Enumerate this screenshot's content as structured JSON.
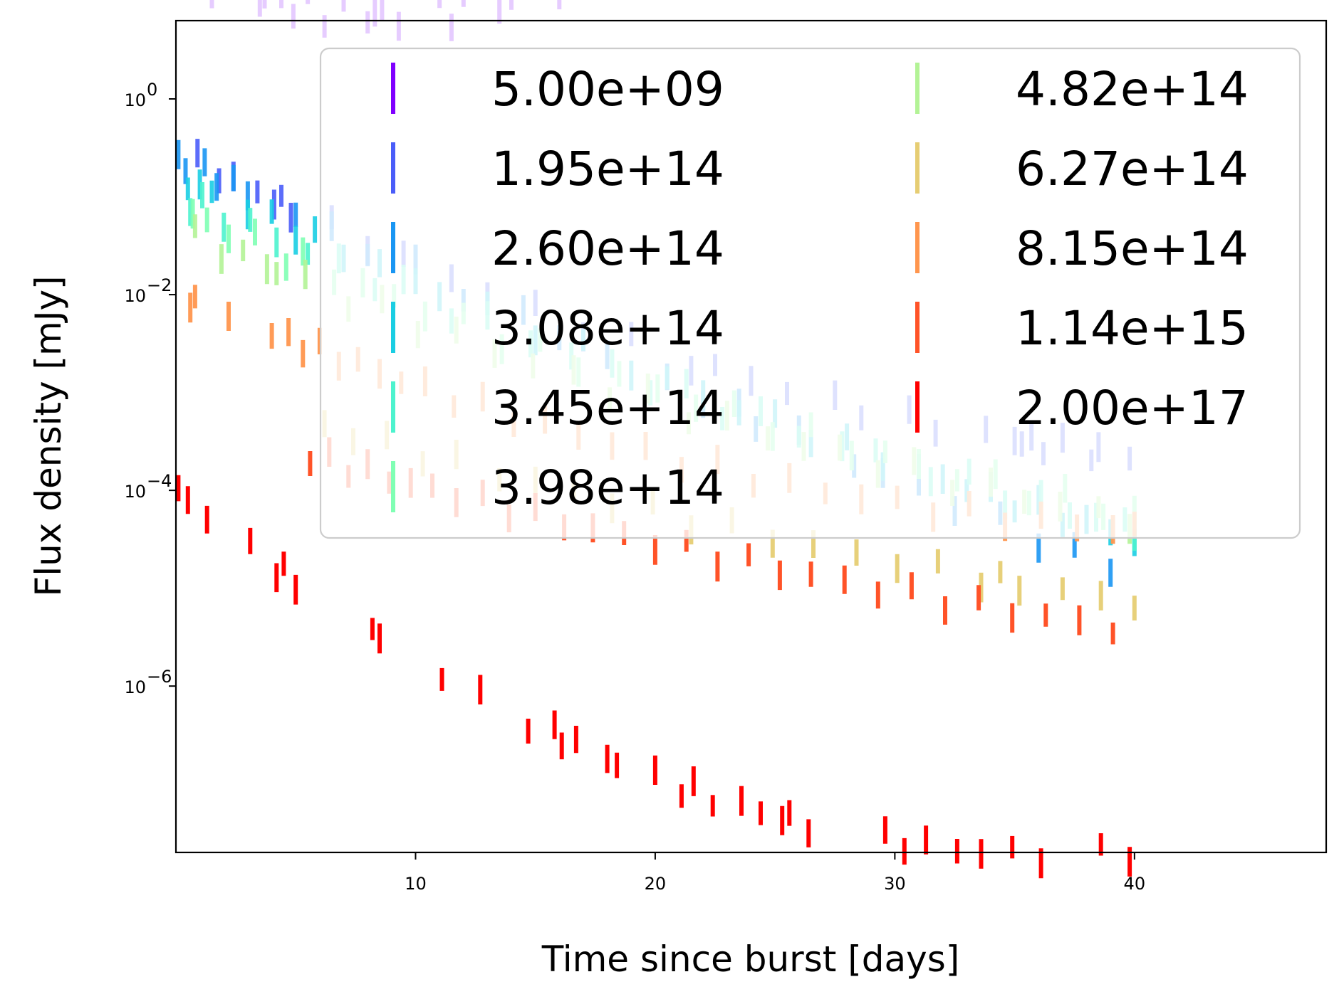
{
  "chart_data": {
    "type": "scatter",
    "marker": "vertical-line",
    "xlabel": "Time since burst [days]",
    "ylabel": "Flux density [mJy]",
    "xscale": "linear",
    "yscale": "log",
    "xlim": [
      0,
      48
    ],
    "ylim_log10": [
      -7.7,
      0.8
    ],
    "xticks": [
      10,
      20,
      30,
      40
    ],
    "yticks_log10": [
      0,
      -2,
      -4,
      -6
    ],
    "ytick_labels": [
      [
        "10",
        "0"
      ],
      [
        "10",
        "−2"
      ],
      [
        "10",
        "−4"
      ],
      [
        "10",
        "−6"
      ]
    ],
    "legend": {
      "location": "upper right",
      "columns": 2,
      "alpha": 0.8
    },
    "series": [
      {
        "name": "5.00e+09",
        "color": "#8000ff",
        "log_decay": 1.45,
        "noise_amp": 0.18,
        "drawn_x": 4.9,
        "x": [
          0.3,
          0.5,
          0.7,
          1.0,
          1.5,
          1.8,
          3.5,
          3.7,
          4.4,
          4.9,
          5.5,
          6.2,
          7.0,
          8.0,
          8.3,
          8.6,
          9.3,
          11.0,
          11.5,
          12.0,
          13.5,
          14.0,
          15.5,
          16.0,
          17.0,
          18.0,
          18.8,
          20.2,
          21.0,
          22.3,
          23.5,
          24.5,
          25.6,
          26.0,
          27.2,
          27.8,
          28.7,
          30.0,
          31.0,
          32.0,
          33.7,
          34.9,
          35.3,
          36.0,
          38.8,
          39.8
        ]
      },
      {
        "name": "1.95e+14",
        "color": "#4a5df9",
        "log_decay": 1.8,
        "noise_amp": 0.1,
        "drawn_x": 4.8,
        "x": [
          0.9,
          1.8,
          2.4,
          3.4,
          4.1,
          4.4,
          4.8,
          6.5,
          8.0,
          9.5,
          11.5,
          13.0,
          15.0,
          17.0,
          19.0,
          21.5,
          22.5,
          24.0,
          25.5,
          27.5,
          28.6,
          30.6,
          31.7,
          33.8,
          35.0,
          35.3,
          35.7,
          36.2,
          37.0,
          38.2,
          38.5,
          39.8
        ]
      },
      {
        "name": "2.60e+14",
        "color": "#1996f3",
        "log_decay": 1.92,
        "noise_amp": 0.1,
        "drawn_x": 2.4,
        "x": [
          0.1,
          0.4,
          1.2,
          1.7,
          2.4,
          3.0,
          5.0,
          6.5,
          8.0,
          10.0,
          12.0,
          14.5,
          16.0,
          18.0,
          20.5,
          22.0,
          23.5,
          24.2,
          26.0,
          28.3,
          29.5,
          31.0,
          32.5,
          34.4,
          36.0,
          37.5,
          39.0
        ]
      },
      {
        "name": "3.08e+14",
        "color": "#1acee3",
        "log_decay": 2.0,
        "noise_amp": 0.1,
        "drawn_x": 5.0,
        "x": [
          0.5,
          1.0,
          1.5,
          3.0,
          4.0,
          5.0,
          5.8,
          7.0,
          8.5,
          10.0,
          11.0,
          13.0,
          15.0,
          17.0,
          19.0,
          20.5,
          22.0,
          23.5,
          25.0,
          26.5,
          28.0,
          29.5,
          31.0,
          32.0,
          33.0,
          34.0,
          35.0,
          36.0,
          37.0,
          38.0,
          39.0,
          40.0
        ]
      },
      {
        "name": "3.45e+14",
        "color": "#4df3ce",
        "log_decay": 2.05,
        "noise_amp": 0.12,
        "drawn_x": 4.2,
        "x": [
          0.6,
          1.1,
          2.0,
          3.1,
          4.2,
          5.5,
          6.8,
          8.3,
          9.5,
          11.5,
          13.0,
          14.8,
          16.5,
          18.2,
          19.8,
          21.3,
          22.8,
          24.4,
          26.0,
          27.8,
          29.2,
          31.5,
          33.1,
          34.6,
          36.1,
          37.3,
          38.4,
          39.6,
          40.0
        ]
      },
      {
        "name": "3.98e+14",
        "color": "#80ffb4",
        "log_decay": 2.1,
        "noise_amp": 0.12,
        "drawn_x": 2.2,
        "x": [
          0.7,
          1.3,
          2.2,
          3.3,
          4.6,
          5.3,
          6.6,
          7.8,
          9.1,
          10.4,
          12.0,
          13.6,
          15.2,
          16.8,
          18.5,
          20.1,
          21.7,
          23.3,
          24.9,
          26.5,
          28.2,
          29.6,
          31.0,
          32.6,
          34.2,
          35.6,
          37.1,
          38.7,
          40.0
        ]
      },
      {
        "name": "4.82e+14",
        "color": "#b3f396",
        "log_decay": 2.15,
        "noise_amp": 0.12,
        "drawn_x": 1.9,
        "x": [
          0.8,
          1.9,
          2.8,
          3.8,
          4.2,
          5.4,
          7.2,
          8.6,
          10.1,
          11.7,
          13.3,
          14.9,
          16.6,
          18.1,
          19.7,
          21.4,
          23.0,
          24.7,
          26.2,
          27.7,
          29.3,
          30.8,
          32.4,
          34.0,
          35.4,
          36.9,
          38.5,
          39.8
        ]
      },
      {
        "name": "6.27e+14",
        "color": "#e6cd73",
        "log_decay": 2.25,
        "noise_amp": 0.1,
        "drawn_x": 11.7,
        "x": [
          6.2,
          7.4,
          8.8,
          10.3,
          11.7,
          13.5,
          15.0,
          16.6,
          18.2,
          19.9,
          21.5,
          23.2,
          24.9,
          26.6,
          28.4,
          30.1,
          31.8,
          33.6,
          34.4,
          35.2,
          37.0,
          38.6,
          40.0
        ]
      },
      {
        "name": "8.15e+14",
        "color": "#ff964e",
        "log_decay": 2.3,
        "noise_amp": 0.1,
        "drawn_x": 0.75,
        "x": [
          0.6,
          0.8,
          2.2,
          4.0,
          4.7,
          5.3,
          6.0,
          6.8,
          7.6,
          8.5,
          9.4,
          10.4,
          11.6,
          12.8,
          14.1,
          15.4,
          16.8,
          18.2,
          19.6,
          21.1,
          22.6,
          24.1,
          25.6,
          27.1,
          28.6,
          30.1,
          31.6,
          33.1,
          34.6,
          36.1,
          37.6,
          39.1,
          40.0
        ]
      },
      {
        "name": "1.14e+15",
        "color": "#ff5328",
        "log_decay": 2.4,
        "noise_amp": 0.1,
        "drawn_x": 9.2,
        "x": [
          5.6,
          6.4,
          7.2,
          8.0,
          8.9,
          9.8,
          10.7,
          11.7,
          12.8,
          13.9,
          15.0,
          16.2,
          17.4,
          18.7,
          20.0,
          21.3,
          22.6,
          23.9,
          25.2,
          26.5,
          27.9,
          29.3,
          30.7,
          32.1,
          33.5,
          34.9,
          36.3,
          37.7,
          39.1
        ]
      },
      {
        "name": "2.00e+17",
        "color": "#ff0000",
        "log_decay": 2.52,
        "noise_amp": 0.1,
        "drawn_x": 8.0,
        "x": [
          0.1,
          0.5,
          1.3,
          3.1,
          4.2,
          4.5,
          5.0,
          8.2,
          8.5,
          11.1,
          12.7,
          14.7,
          15.8,
          16.1,
          16.7,
          18.0,
          18.4,
          20.0,
          21.1,
          21.6,
          22.4,
          23.6,
          24.4,
          25.3,
          25.6,
          26.4,
          29.6,
          30.4,
          31.3,
          32.6,
          33.6,
          34.9,
          36.1,
          38.6,
          39.8
        ]
      }
    ]
  }
}
